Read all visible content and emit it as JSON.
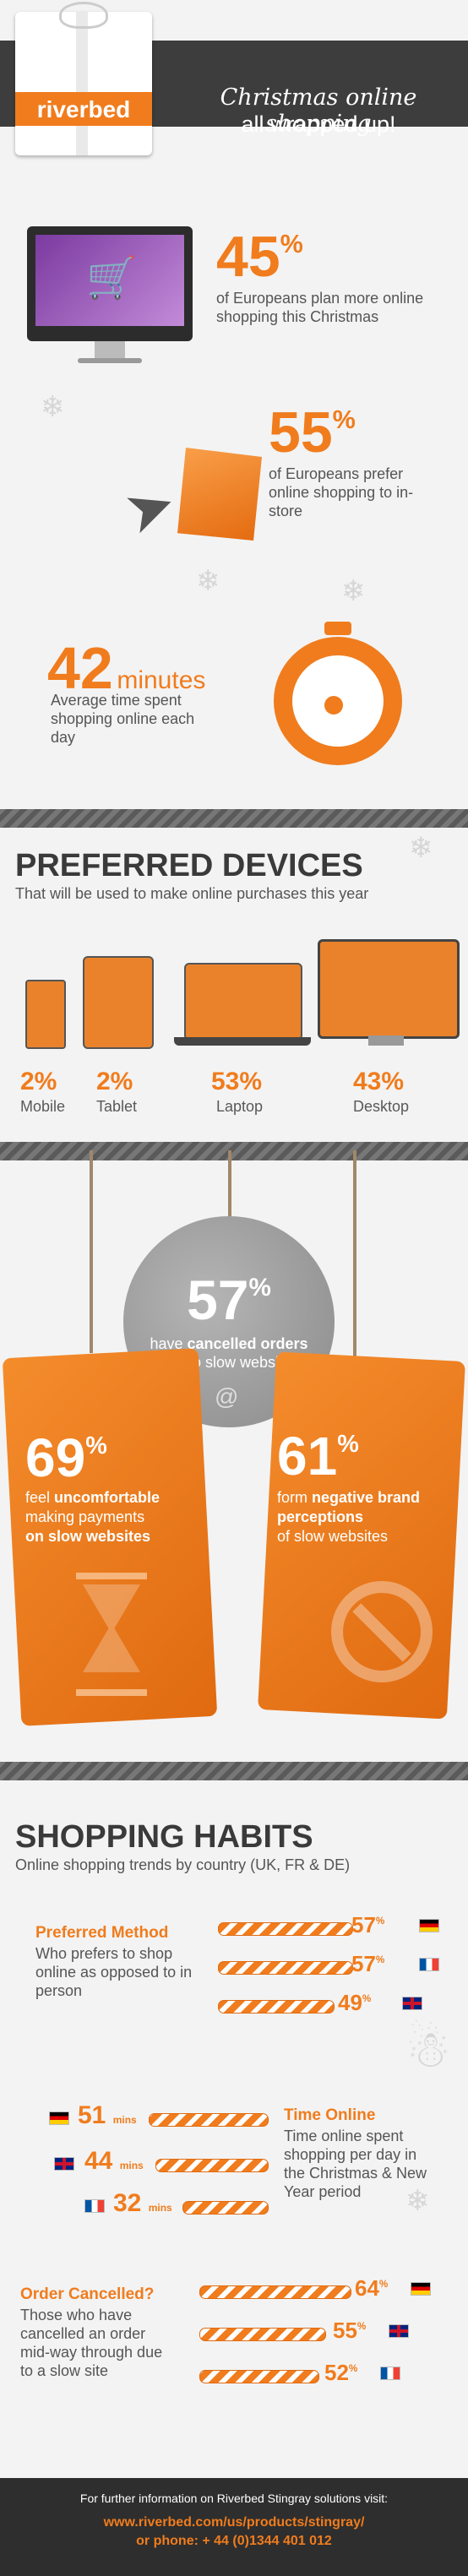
{
  "brand": {
    "logo": "riverbed",
    "headline_line1": "Christmas online shopping",
    "headline_line2": "all wrapped up!"
  },
  "intro": {
    "stat1": {
      "value": "45",
      "unit": "%",
      "text": "of Europeans plan more online shopping this Christmas"
    },
    "stat2": {
      "value": "55",
      "unit": "%",
      "text": "of Europeans prefer online shopping to in-store"
    },
    "stat3": {
      "value": "42",
      "unit": "minutes",
      "text": "Average time spent shopping online each day"
    }
  },
  "devices": {
    "title": "PREFERRED DEVICES",
    "subtitle": "That will be used to make online purchases this year",
    "items": [
      {
        "pct": "2%",
        "label": "Mobile"
      },
      {
        "pct": "2%",
        "label": "Tablet"
      },
      {
        "pct": "53%",
        "label": "Laptop"
      },
      {
        "pct": "43%",
        "label": "Desktop"
      }
    ]
  },
  "tags": {
    "center": {
      "value": "57",
      "unit": "%",
      "pre": "have ",
      "bold": "cancelled orders",
      "post": "due to slow websites"
    },
    "left": {
      "value": "69",
      "unit": "%",
      "pre": "feel ",
      "bold": "uncomfortable",
      "mid": "making payments",
      "bold2": "on slow websites"
    },
    "right": {
      "value": "61",
      "unit": "%",
      "pre": "form ",
      "bold": "negative brand perceptions",
      "post": "of slow websites"
    }
  },
  "habits": {
    "title": "SHOPPING HABITS",
    "subtitle": "Online shopping trends by country (UK, FR & DE)",
    "preferred": {
      "heading": "Preferred Method",
      "text": "Who prefers to shop online as opposed to in person",
      "rows": [
        {
          "value": "57",
          "unit": "%",
          "country": "de",
          "fraction": 0.57
        },
        {
          "value": "57",
          "unit": "%",
          "country": "fr",
          "fraction": 0.57
        },
        {
          "value": "49",
          "unit": "%",
          "country": "uk",
          "fraction": 0.49
        }
      ]
    },
    "time": {
      "heading": "Time Online",
      "text": "Time online spent shopping per day in the Christmas & New Year period",
      "rows": [
        {
          "value": "51",
          "unit": "mins",
          "country": "de"
        },
        {
          "value": "44",
          "unit": "mins",
          "country": "uk"
        },
        {
          "value": "32",
          "unit": "mins",
          "country": "fr"
        }
      ]
    },
    "cancelled": {
      "heading": "Order Cancelled?",
      "text": "Those who have cancelled an order mid-way through due to a slow site",
      "rows": [
        {
          "value": "64",
          "unit": "%",
          "country": "de"
        },
        {
          "value": "55",
          "unit": "%",
          "country": "uk"
        },
        {
          "value": "52",
          "unit": "%",
          "country": "fr"
        }
      ]
    }
  },
  "footer": {
    "line1": "For further information on Riverbed Stingray solutions visit:",
    "line2": "www.riverbed.com/us/products/stingray/",
    "line3": "or phone: + 44 (0)1344 401 012"
  },
  "colors": {
    "accent": "#f07c1d",
    "dark": "#3a3a3a"
  }
}
